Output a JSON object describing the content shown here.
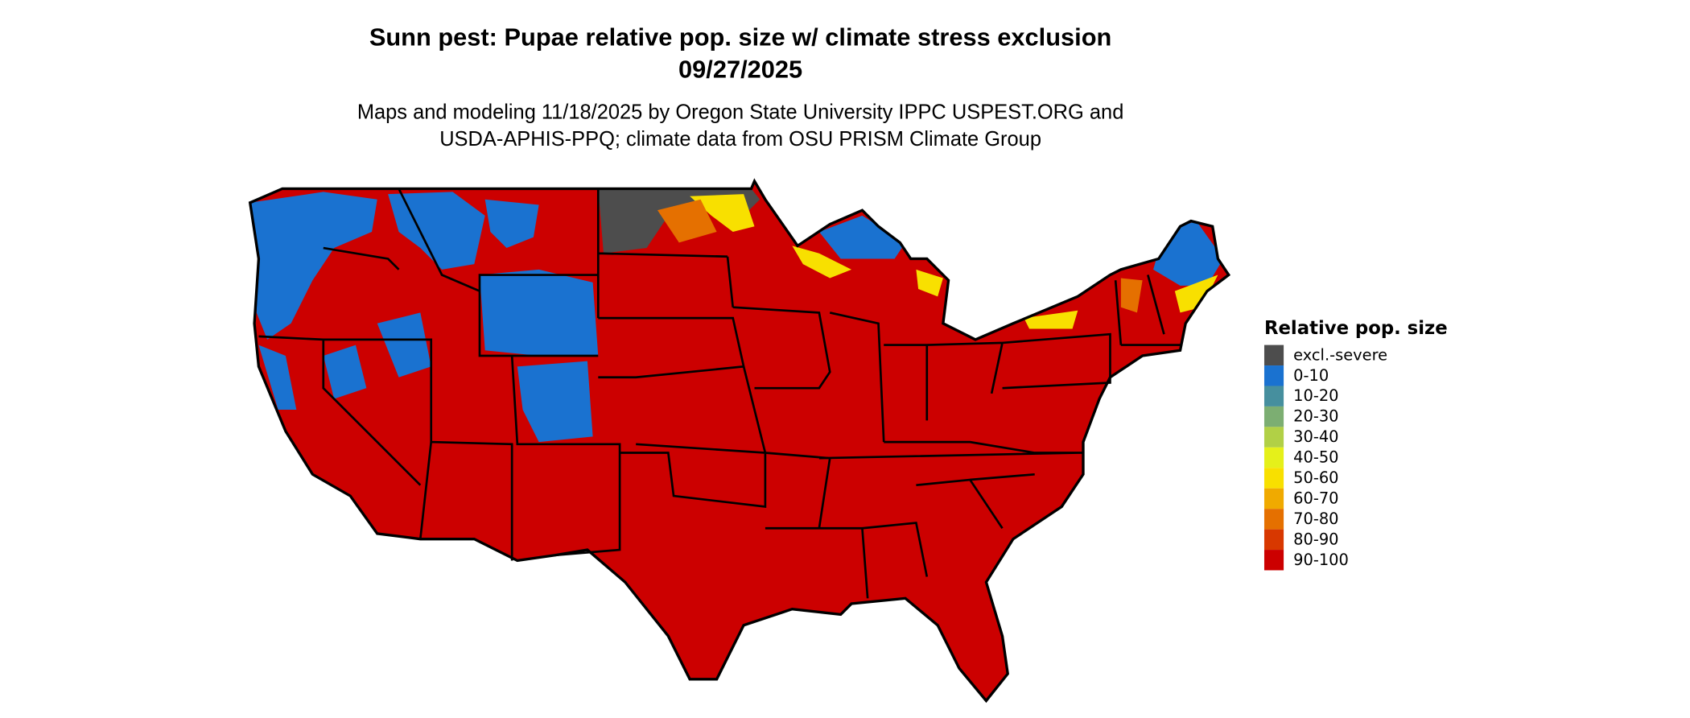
{
  "title": {
    "line1": "Sunn pest: Pupae relative pop. size w/ climate stress exclusion",
    "line2": "09/27/2025"
  },
  "subtitle": {
    "line1": "Maps and modeling 11/18/2025 by Oregon State University IPPC USPEST.ORG and",
    "line2": "USDA-APHIS-PPQ; climate data from OSU PRISM Climate Group"
  },
  "legend": {
    "title": "Relative pop. size",
    "items": [
      {
        "label": "excl.-severe",
        "color": "#4d4d4d"
      },
      {
        "label": "0-10",
        "color": "#1a72d0"
      },
      {
        "label": "10-20",
        "color": "#468f9e"
      },
      {
        "label": "20-30",
        "color": "#7cae72"
      },
      {
        "label": "30-40",
        "color": "#b1d046"
      },
      {
        "label": "40-50",
        "color": "#e5f01a"
      },
      {
        "label": "50-60",
        "color": "#f8e000"
      },
      {
        "label": "60-70",
        "color": "#f0aa00"
      },
      {
        "label": "70-80",
        "color": "#e57000"
      },
      {
        "label": "80-90",
        "color": "#d83800"
      },
      {
        "label": "90-100",
        "color": "#cc0000"
      }
    ]
  },
  "map": {
    "region": "Contiguous United States",
    "dominant_class": "90-100",
    "border_color": "#000000"
  }
}
